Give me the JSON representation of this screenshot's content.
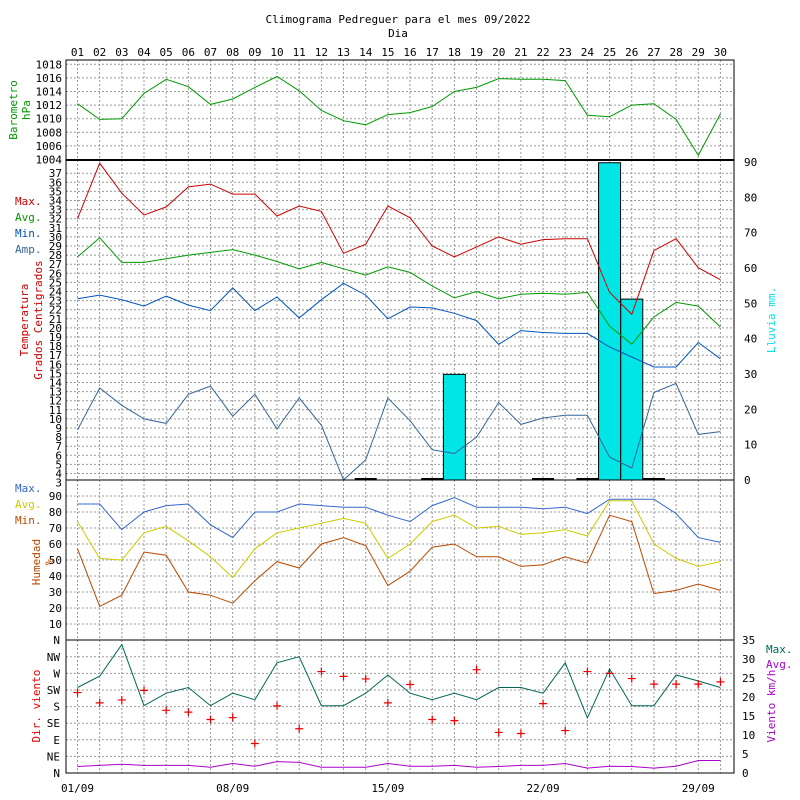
{
  "chart_data": {
    "type": "line",
    "title": "Climograma Pedreguer para el mes 09/2022",
    "xlabel": "Dia",
    "days": [
      "01",
      "02",
      "03",
      "04",
      "05",
      "06",
      "07",
      "08",
      "09",
      "10",
      "11",
      "12",
      "13",
      "14",
      "15",
      "16",
      "17",
      "18",
      "19",
      "20",
      "21",
      "22",
      "23",
      "24",
      "25",
      "26",
      "27",
      "28",
      "29",
      "30"
    ],
    "bottom_dates": [
      "01/09",
      "08/09",
      "15/09",
      "22/09",
      "29/09"
    ],
    "colors": {
      "max": "#cc0000",
      "avg": "#009900",
      "min": "#0055bb",
      "amp": "#336699",
      "rain": "#00e5e5",
      "hum_max": "#3366cc",
      "hum_avg": "#cccc00",
      "hum_min": "#b84800",
      "wind_max": "#006655",
      "wind_avg": "#aa00cc",
      "wind_dir": "#ee0000"
    },
    "panels": {
      "pressure": {
        "ylabel": [
          "Barometro",
          "hPa"
        ],
        "ticks": [
          "1018",
          "1016",
          "1014",
          "1012",
          "1010",
          "1008",
          "1006",
          "1004"
        ],
        "ylim": [
          1004,
          1018
        ],
        "series": [
          {
            "name": "",
            "values": [
              1012.2,
              1009.9,
              1010.0,
              1013.7,
              1015.8,
              1014.7,
              1012.1,
              1012.9,
              1014.6,
              1016.2,
              1014.1,
              1011.2,
              1009.7,
              1009.1,
              1010.6,
              1010.9,
              1011.8,
              1014.0,
              1014.6,
              1015.9,
              1015.8,
              1015.8,
              1015.6,
              1010.5,
              1010.3,
              1012.0,
              1012.2,
              1009.9,
              1004.6,
              1010.7
            ]
          }
        ]
      },
      "temperature": {
        "ylabel": [
          "Temperatura",
          "Grados Centigrados"
        ],
        "ylabel2": "Lluvia mm.",
        "legend": [
          "Max.",
          "Avg.",
          "Min.",
          "Amp."
        ],
        "ticks": [
          "3",
          "4",
          "5",
          "6",
          "7",
          "8",
          "9",
          "10",
          "11",
          "12",
          "13",
          "14",
          "15",
          "16",
          "17",
          "18",
          "19",
          "20",
          "21",
          "22",
          "23",
          "24",
          "25",
          "26",
          "27",
          "28",
          "29",
          "30",
          "31",
          "32",
          "33",
          "34",
          "35",
          "36",
          "37"
        ],
        "right_ticks": [
          "0",
          "10",
          "20",
          "30",
          "40",
          "50",
          "60",
          "70",
          "80",
          "90"
        ],
        "ylim": [
          3,
          38
        ],
        "y2lim": [
          0,
          90
        ],
        "max": [
          32.0,
          38.1,
          34.8,
          32.4,
          33.3,
          35.5,
          35.8,
          34.7,
          34.7,
          32.3,
          33.4,
          32.8,
          28.2,
          29.2,
          33.4,
          32.1,
          29.0,
          27.8,
          28.9,
          30.0,
          29.2,
          29.7,
          29.8,
          29.8,
          23.9,
          21.5,
          28.5,
          29.8,
          26.6,
          25.3
        ],
        "avg": [
          27.8,
          29.9,
          27.2,
          27.2,
          27.6,
          28.0,
          28.3,
          28.6,
          28.0,
          27.3,
          26.5,
          27.2,
          26.5,
          25.8,
          26.7,
          26.1,
          24.6,
          23.3,
          24.0,
          23.2,
          23.7,
          23.8,
          23.7,
          23.9,
          20.2,
          18.2,
          21.2,
          22.8,
          22.4,
          20.1
        ],
        "min": [
          23.2,
          23.6,
          23.1,
          22.4,
          23.5,
          22.5,
          21.9,
          24.4,
          21.9,
          23.4,
          21.1,
          23.1,
          24.9,
          23.6,
          21.0,
          22.3,
          22.2,
          21.6,
          20.8,
          18.2,
          19.7,
          19.5,
          19.4,
          19.4,
          17.9,
          16.8,
          15.7,
          15.7,
          18.4,
          16.6
        ],
        "amp": [
          8.8,
          13.4,
          11.5,
          10.0,
          9.5,
          12.7,
          13.6,
          10.3,
          12.7,
          8.9,
          12.3,
          9.3,
          3.3,
          5.5,
          12.3,
          9.8,
          6.6,
          6.2,
          8.0,
          11.8,
          9.4,
          10.1,
          10.4,
          10.4,
          5.8,
          4.6,
          12.9,
          13.9,
          8.3,
          8.6
        ],
        "rain": [
          0,
          0,
          0,
          0,
          0,
          0,
          0,
          0,
          0,
          0,
          0,
          0,
          0,
          0.6,
          0,
          0,
          0.4,
          29.9,
          0,
          0,
          0,
          0.2,
          0,
          0.4,
          89.8,
          51.2,
          0.4,
          0,
          0,
          0
        ]
      },
      "humidity": {
        "ylabel": [
          "Humedad",
          "%"
        ],
        "legend": [
          "Max.",
          "Avg.",
          "Min."
        ],
        "ticks": [
          "10",
          "20",
          "30",
          "40",
          "50",
          "60",
          "70",
          "80",
          "90"
        ],
        "ylim": [
          0,
          100
        ],
        "max": [
          85,
          85,
          69,
          80,
          84,
          85,
          72,
          64,
          80,
          80,
          85,
          84,
          83,
          83,
          78,
          74,
          84,
          89,
          83,
          83,
          83,
          82,
          83,
          79,
          88,
          88,
          88,
          79,
          64,
          61
        ],
        "avg": [
          74,
          51,
          50,
          67,
          71,
          62,
          52,
          39,
          57,
          67,
          70,
          73,
          76,
          73,
          51,
          60,
          74,
          78,
          70,
          71,
          66,
          67,
          69,
          65,
          87,
          87,
          60,
          51,
          46,
          49
        ],
        "min": [
          57,
          21,
          28,
          55,
          53,
          30,
          28,
          23,
          37,
          49,
          45,
          60,
          64,
          59,
          34,
          43,
          58,
          60,
          52,
          52,
          46,
          47,
          52,
          48,
          78,
          74,
          29,
          31,
          35,
          31
        ]
      },
      "wind": {
        "ylabel": "Dir. viento",
        "ylabel2": "Viento km/h",
        "legend": [
          "Max.",
          "Avg."
        ],
        "dir_ticks": [
          "N",
          "NE",
          "E",
          "SE",
          "S",
          "SW",
          "W",
          "NW",
          "N"
        ],
        "right_ticks": [
          "0",
          "5",
          "10",
          "15",
          "20",
          "25",
          "30",
          "35"
        ],
        "y2lim": [
          0,
          35
        ],
        "max": [
          22.5,
          25.5,
          33.8,
          17.7,
          21.0,
          22.5,
          17.7,
          21.0,
          19.3,
          29.0,
          30.6,
          17.7,
          17.7,
          21.0,
          25.8,
          21.0,
          19.3,
          21.0,
          19.3,
          22.5,
          22.5,
          21.0,
          29.0,
          14.5,
          27.4,
          17.7,
          17.7,
          25.8,
          24.2,
          22.5
        ],
        "avg": [
          1.7,
          2.0,
          2.3,
          2.0,
          2.0,
          2.0,
          1.5,
          2.5,
          1.8,
          3.0,
          2.8,
          1.5,
          1.5,
          1.5,
          2.5,
          1.8,
          1.8,
          2.0,
          1.5,
          1.7,
          2.0,
          2.0,
          2.5,
          1.3,
          1.8,
          1.7,
          1.3,
          1.8,
          3.3,
          3.3
        ],
        "dir_deg": [
          218,
          190,
          198,
          224,
          170,
          165,
          145,
          150,
          80,
          182,
          120,
          275,
          262,
          255,
          190,
          240,
          145,
          142,
          280,
          110,
          107,
          188,
          115,
          275,
          270,
          256,
          241,
          241,
          241,
          247
        ]
      }
    }
  }
}
